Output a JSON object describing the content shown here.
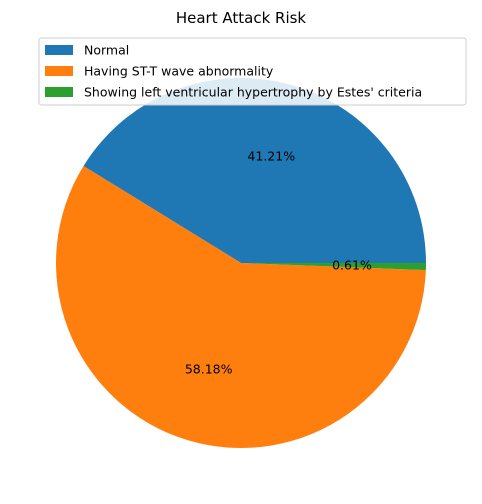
{
  "chart_data": {
    "type": "pie",
    "title": "Heart Attack Risk",
    "legend_position": "top-right",
    "slices": [
      {
        "label": "Normal",
        "value": 41.21,
        "display": "41.21%",
        "color": "#1f77b4"
      },
      {
        "label": "Having ST-T wave abnormality",
        "value": 58.18,
        "display": "58.18%",
        "color": "#ff7f0e"
      },
      {
        "label": "Showing left ventricular hypertrophy by Estes' criteria",
        "value": 0.61,
        "display": "0.61%",
        "color": "#2ca02c"
      }
    ]
  }
}
